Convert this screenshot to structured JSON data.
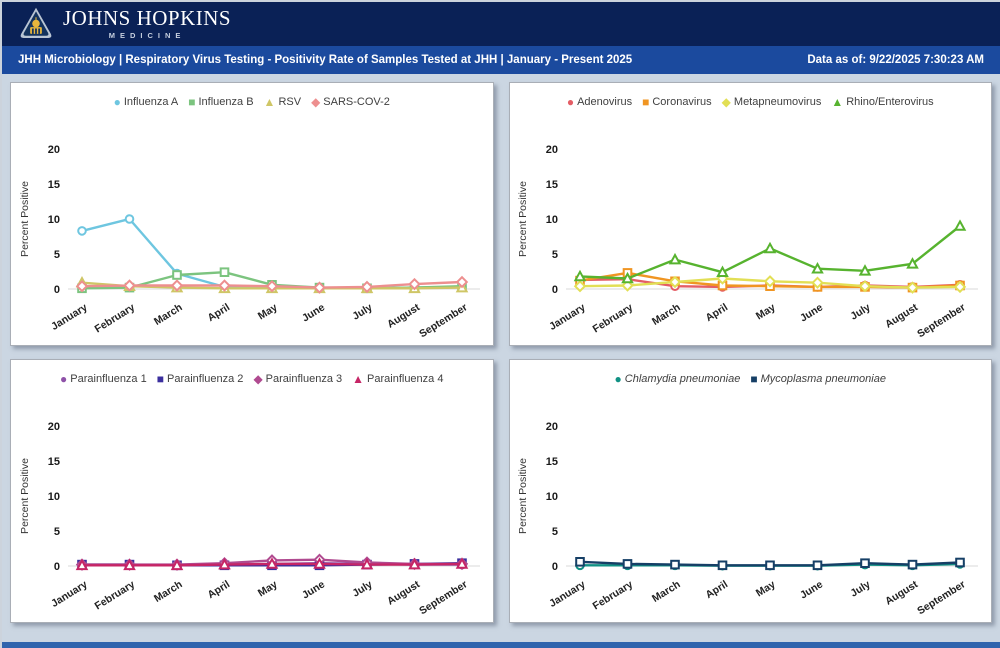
{
  "header": {
    "brand_line1": "JOHNS HOPKINS",
    "brand_line2": "MEDICINE",
    "title": "JHH Microbiology | Respiratory Virus Testing - Positivity Rate of Samples Tested at JHH | January - Present 2025",
    "data_as_of": "Data as of: 9/22/2025 7:30:23 AM"
  },
  "colors": {
    "header-navy": "#0a2156",
    "title-blue": "#1b4a9e",
    "page-bg": "#cbd6e2",
    "footer-blue": "#2f64ad",
    "logo-gold": "#e8b63c",
    "logo-shield": "#b9c5d4"
  },
  "chart_data": [
    {
      "type": "line",
      "name": "influenza-rsv-sarscov2",
      "title": "",
      "ylabel": "Percent Positive",
      "yticks": [
        0,
        5,
        10,
        15,
        20
      ],
      "ylim": [
        0,
        22
      ],
      "grid": false,
      "legend_position": "top",
      "categories": [
        "January",
        "February",
        "March",
        "April",
        "May",
        "June",
        "July",
        "August",
        "September"
      ],
      "series": [
        {
          "name": "Influenza A",
          "marker": "circle",
          "color": "#6ec6e0",
          "values": [
            8.3,
            10.0,
            2.2,
            0.3,
            0.2,
            0.1,
            0.1,
            0.2,
            0.3
          ]
        },
        {
          "name": "Influenza B",
          "marker": "square",
          "color": "#7cc47f",
          "values": [
            0.1,
            0.2,
            2.0,
            2.4,
            0.6,
            0.2,
            0.1,
            0.2,
            0.4
          ]
        },
        {
          "name": "RSV",
          "marker": "triangle",
          "color": "#cfc666",
          "values": [
            0.9,
            0.4,
            0.2,
            0.1,
            0.1,
            0.1,
            0.1,
            0.1,
            0.2
          ]
        },
        {
          "name": "SARS-COV-2",
          "marker": "diamond",
          "color": "#ed8f8f",
          "values": [
            0.4,
            0.5,
            0.5,
            0.5,
            0.4,
            0.2,
            0.3,
            0.7,
            1.0
          ]
        }
      ]
    },
    {
      "type": "line",
      "name": "adeno-corona-metapneumo-rhino",
      "title": "",
      "ylabel": "Percent Positive",
      "yticks": [
        0,
        5,
        10,
        15,
        20
      ],
      "ylim": [
        0,
        22
      ],
      "grid": false,
      "legend_position": "top",
      "categories": [
        "January",
        "February",
        "March",
        "April",
        "May",
        "June",
        "July",
        "August",
        "September"
      ],
      "series": [
        {
          "name": "Adenovirus",
          "marker": "circle",
          "color": "#e45d65",
          "values": [
            1.3,
            1.4,
            0.4,
            0.3,
            0.5,
            0.3,
            0.5,
            0.3,
            0.6
          ]
        },
        {
          "name": "Coronavirus",
          "marker": "square",
          "color": "#f09522",
          "values": [
            1.2,
            2.3,
            1.1,
            0.5,
            0.4,
            0.3,
            0.3,
            0.2,
            0.5
          ]
        },
        {
          "name": "Metapneumovirus",
          "marker": "diamond",
          "color": "#e2df55",
          "values": [
            0.4,
            0.5,
            1.0,
            1.5,
            1.1,
            0.9,
            0.4,
            0.2,
            0.3
          ]
        },
        {
          "name": "Rhino/Enterovirus",
          "marker": "triangle",
          "color": "#57b32f",
          "values": [
            1.8,
            1.5,
            4.2,
            2.4,
            5.8,
            2.9,
            2.6,
            3.6,
            9.0
          ]
        }
      ]
    },
    {
      "type": "line",
      "name": "parainfluenza-1-4",
      "title": "",
      "ylabel": "Percent Positive",
      "yticks": [
        0,
        5,
        10,
        15,
        20
      ],
      "ylim": [
        0,
        22
      ],
      "grid": false,
      "legend_position": "top",
      "categories": [
        "January",
        "February",
        "March",
        "April",
        "May",
        "June",
        "July",
        "August",
        "September"
      ],
      "series": [
        {
          "name": "Parainfluenza 1",
          "marker": "circle",
          "color": "#8e51a8",
          "values": [
            0.1,
            0.1,
            0.1,
            0.2,
            0.3,
            0.4,
            0.3,
            0.2,
            0.2
          ]
        },
        {
          "name": "Parainfluenza 2",
          "marker": "square",
          "color": "#3b2f9e",
          "values": [
            0.2,
            0.2,
            0.1,
            0.1,
            0.1,
            0.1,
            0.2,
            0.3,
            0.4
          ]
        },
        {
          "name": "Parainfluenza 3",
          "marker": "diamond",
          "color": "#b04a90",
          "values": [
            0.2,
            0.2,
            0.2,
            0.4,
            0.8,
            0.9,
            0.5,
            0.3,
            0.3
          ]
        },
        {
          "name": "Parainfluenza 4",
          "marker": "triangle",
          "color": "#c62566",
          "values": [
            0.1,
            0.1,
            0.1,
            0.2,
            0.3,
            0.3,
            0.2,
            0.2,
            0.3
          ]
        }
      ]
    },
    {
      "type": "line",
      "name": "chlamydia-mycoplasma",
      "title": "",
      "ylabel": "Percent Positive",
      "yticks": [
        0,
        5,
        10,
        15,
        20
      ],
      "ylim": [
        0,
        22
      ],
      "grid": false,
      "legend_position": "top",
      "categories": [
        "January",
        "February",
        "March",
        "April",
        "May",
        "June",
        "July",
        "August",
        "September"
      ],
      "series": [
        {
          "name": "Chlamydia pneumoniae",
          "marker": "circle",
          "color": "#119184",
          "italic": true,
          "values": [
            0.1,
            0.1,
            0.1,
            0.05,
            0.05,
            0.05,
            0.2,
            0.1,
            0.3
          ]
        },
        {
          "name": "Mycoplasma pneumoniae",
          "marker": "square",
          "color": "#163f66",
          "italic": true,
          "values": [
            0.6,
            0.3,
            0.2,
            0.1,
            0.1,
            0.1,
            0.4,
            0.2,
            0.5
          ]
        }
      ]
    }
  ]
}
